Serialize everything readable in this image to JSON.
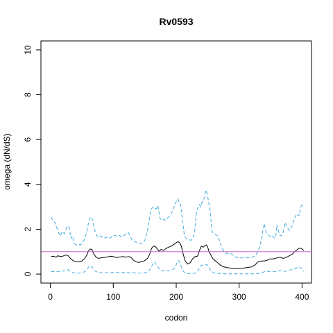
{
  "chart_data": {
    "type": "line",
    "title": "Rv0593",
    "xlabel": "codon",
    "ylabel": "omega (dN/dS)",
    "xlim": [
      -15,
      415
    ],
    "ylim": [
      -0.4,
      10.4
    ],
    "xticks": [
      0,
      100,
      200,
      300,
      400
    ],
    "yticks": [
      0,
      2,
      4,
      6,
      8,
      10
    ],
    "reference_line": {
      "y": 1,
      "color": "#cc66cc"
    },
    "grid": false,
    "series": [
      {
        "role": "upper",
        "style": "dashed",
        "color": "#3fa8e0",
        "x": [
          1,
          4,
          7,
          9,
          11,
          14,
          16,
          19,
          22,
          24,
          26,
          28,
          30,
          33,
          35,
          38,
          42,
          45,
          48,
          51,
          55,
          58,
          60,
          62,
          64,
          66,
          68,
          70,
          73,
          76,
          80,
          85,
          90,
          95,
          100,
          105,
          110,
          115,
          120,
          124,
          127,
          130,
          134,
          138,
          142,
          146,
          150,
          154,
          157,
          160,
          162,
          164,
          166,
          168,
          171,
          174,
          177,
          180,
          183,
          186,
          190,
          194,
          198,
          201,
          203,
          205,
          207,
          210,
          213,
          216,
          220,
          223,
          226,
          229,
          232,
          235,
          237,
          239,
          241,
          243,
          245,
          247,
          249,
          251,
          254,
          257,
          260,
          263,
          266,
          268,
          270,
          272,
          275,
          280,
          285,
          290,
          295,
          300,
          305,
          310,
          315,
          320,
          325,
          330,
          333,
          336,
          338,
          340,
          342,
          344,
          347,
          350,
          353,
          356,
          358,
          360,
          362,
          364,
          367,
          370,
          373,
          376,
          380,
          384,
          388,
          392,
          395,
          398,
          401,
          403
        ],
        "y": [
          2.55,
          2.4,
          2.3,
          2.2,
          2.0,
          1.8,
          1.7,
          1.9,
          1.8,
          1.95,
          2.1,
          2.15,
          2.05,
          1.6,
          1.7,
          1.35,
          1.3,
          1.32,
          1.3,
          1.4,
          1.6,
          1.9,
          2.2,
          2.45,
          2.55,
          2.5,
          2.3,
          2.0,
          1.75,
          1.65,
          1.7,
          1.6,
          1.65,
          1.6,
          1.75,
          1.7,
          1.72,
          1.65,
          1.8,
          1.85,
          1.7,
          1.5,
          1.45,
          1.4,
          1.35,
          1.38,
          1.5,
          1.9,
          2.4,
          2.9,
          2.95,
          3.0,
          2.95,
          2.9,
          3.05,
          2.5,
          2.4,
          2.45,
          2.4,
          2.5,
          2.6,
          2.8,
          3.1,
          3.3,
          3.35,
          3.2,
          3.1,
          2.4,
          1.7,
          1.6,
          1.55,
          1.5,
          1.6,
          1.8,
          2.7,
          3.0,
          3.1,
          3.0,
          3.2,
          3.3,
          3.4,
          3.75,
          3.6,
          3.3,
          2.8,
          1.9,
          1.8,
          1.75,
          1.7,
          1.55,
          1.4,
          1.2,
          1.05,
          0.92,
          0.95,
          0.85,
          0.75,
          0.72,
          0.72,
          0.73,
          0.73,
          0.75,
          0.8,
          1.0,
          1.25,
          1.6,
          2.0,
          2.25,
          1.95,
          1.8,
          1.75,
          1.65,
          1.7,
          1.6,
          1.65,
          2.2,
          2.0,
          1.75,
          1.7,
          1.85,
          2.3,
          2.1,
          1.95,
          2.15,
          2.5,
          2.7,
          2.6,
          3.0,
          3.1,
          3.05
        ]
      },
      {
        "role": "estimate",
        "style": "solid",
        "color": "#000000",
        "x": [
          1,
          5,
          9,
          12,
          16,
          20,
          24,
          28,
          32,
          36,
          40,
          45,
          50,
          54,
          58,
          61,
          63,
          66,
          69,
          72,
          76,
          80,
          85,
          90,
          95,
          100,
          105,
          110,
          115,
          120,
          125,
          128,
          132,
          136,
          140,
          145,
          150,
          155,
          158,
          161,
          164,
          167,
          170,
          173,
          176,
          180,
          184,
          188,
          192,
          196,
          200,
          203,
          206,
          208,
          211,
          214,
          218,
          222,
          226,
          230,
          234,
          237,
          240,
          243,
          246,
          248,
          250,
          252,
          255,
          258,
          262,
          266,
          270,
          275,
          280,
          285,
          290,
          295,
          300,
          305,
          310,
          315,
          320,
          325,
          330,
          335,
          340,
          345,
          350,
          355,
          360,
          365,
          370,
          375,
          380,
          385,
          388,
          391,
          395,
          398,
          401,
          403
        ],
        "y": [
          0.78,
          0.8,
          0.75,
          0.82,
          0.78,
          0.8,
          0.85,
          0.83,
          0.7,
          0.6,
          0.55,
          0.55,
          0.58,
          0.68,
          0.85,
          1.05,
          1.12,
          1.1,
          0.9,
          0.78,
          0.7,
          0.72,
          0.74,
          0.76,
          0.8,
          0.78,
          0.74,
          0.76,
          0.78,
          0.76,
          0.78,
          0.75,
          0.62,
          0.55,
          0.52,
          0.55,
          0.6,
          0.72,
          0.9,
          1.15,
          1.25,
          1.22,
          1.12,
          1.02,
          1.1,
          1.05,
          1.15,
          1.2,
          1.25,
          1.32,
          1.4,
          1.45,
          1.38,
          1.25,
          0.9,
          0.6,
          0.45,
          0.5,
          0.68,
          0.78,
          0.8,
          1.05,
          1.25,
          1.2,
          1.28,
          1.3,
          1.22,
          1.0,
          0.85,
          0.7,
          0.6,
          0.5,
          0.4,
          0.33,
          0.29,
          0.27,
          0.26,
          0.25,
          0.25,
          0.26,
          0.28,
          0.3,
          0.32,
          0.4,
          0.55,
          0.58,
          0.58,
          0.62,
          0.68,
          0.68,
          0.72,
          0.75,
          0.7,
          0.75,
          0.82,
          0.9,
          1.0,
          1.05,
          1.15,
          1.15,
          1.1,
          1.05
        ]
      },
      {
        "role": "lower",
        "style": "dashed",
        "color": "#3fa8e0",
        "x": [
          1,
          6,
          12,
          18,
          24,
          28,
          32,
          36,
          42,
          48,
          54,
          58,
          61,
          64,
          67,
          70,
          75,
          80,
          90,
          100,
          110,
          120,
          125,
          130,
          135,
          140,
          145,
          150,
          155,
          158,
          162,
          165,
          167,
          169,
          172,
          175,
          180,
          185,
          190,
          195,
          199,
          202,
          204,
          206,
          209,
          212,
          216,
          220,
          225,
          230,
          235,
          238,
          241,
          244,
          247,
          250,
          252,
          255,
          260,
          270,
          280,
          290,
          300,
          310,
          320,
          330,
          335,
          340,
          345,
          350,
          355,
          360,
          365,
          370,
          375,
          380,
          385,
          390,
          394,
          397,
          400,
          403
        ],
        "y": [
          0.1,
          0.12,
          0.1,
          0.12,
          0.16,
          0.2,
          0.1,
          0.06,
          0.04,
          0.05,
          0.1,
          0.2,
          0.32,
          0.38,
          0.3,
          0.15,
          0.08,
          0.06,
          0.06,
          0.07,
          0.07,
          0.07,
          0.06,
          0.07,
          0.05,
          0.04,
          0.05,
          0.06,
          0.1,
          0.2,
          0.4,
          0.55,
          0.5,
          0.38,
          0.28,
          0.18,
          0.15,
          0.14,
          0.15,
          0.2,
          0.35,
          0.55,
          0.6,
          0.5,
          0.25,
          0.1,
          0.04,
          0.02,
          0.03,
          0.04,
          0.15,
          0.35,
          0.4,
          0.38,
          0.42,
          0.4,
          0.3,
          0.15,
          0.05,
          0.02,
          0.01,
          0.01,
          0.01,
          0.01,
          0.01,
          0.02,
          0.05,
          0.1,
          0.12,
          0.12,
          0.1,
          0.13,
          0.15,
          0.12,
          0.13,
          0.18,
          0.2,
          0.25,
          0.32,
          0.3,
          0.22,
          0.12
        ]
      }
    ]
  }
}
